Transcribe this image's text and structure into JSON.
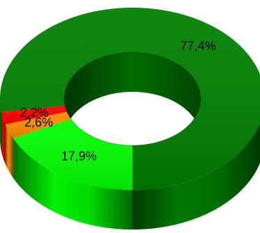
{
  "chart_data": {
    "type": "pie",
    "variant": "3d-donut",
    "slices": [
      {
        "value": 77.4,
        "label": "77,4%",
        "color": "#008000"
      },
      {
        "value": 17.9,
        "label": "17,9%",
        "color": "#00FF00"
      },
      {
        "value": 2.6,
        "label": "2,6%",
        "color": "#FF8C00"
      },
      {
        "value": 2.2,
        "label": "2,2%",
        "color": "#FF0000"
      }
    ],
    "legend": "none",
    "title": ""
  }
}
